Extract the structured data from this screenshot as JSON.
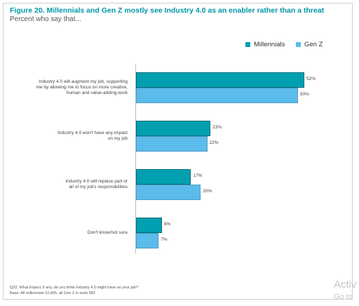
{
  "chart_data": {
    "type": "bar",
    "orientation": "horizontal",
    "title": "Figure 20. Millennials and Gen Z mostly see Industry 4.0 as an enabler rather than a threat",
    "subtitle": "Percent who say that...",
    "categories": [
      "Industry 4.0 will augment my job, supporting me by allowing me to focus on more creative, human and value-adding work",
      "Industry 4.0 won't have any impact on my job",
      "Industry 4.0 will replace part or all of my job's responsibilities",
      "Don't know/not sure"
    ],
    "category_lines": [
      [
        "Industry 4.0 will augment my job, supporting",
        "me by allowing me to focus on more creative,",
        "human and value-adding work"
      ],
      [
        "Industry 4.0 won't have any impact",
        "on my job"
      ],
      [
        "Industry 4.0 will replace part or",
        "all of my job's responsibilities"
      ],
      [
        "Don't know/not sure"
      ]
    ],
    "series": [
      {
        "name": "Millennials",
        "values": [
          52,
          23,
          17,
          8
        ],
        "labels": [
          "52%",
          "23%",
          "17%",
          "8%"
        ],
        "color": "#00a0b0"
      },
      {
        "name": "Gen Z",
        "values": [
          50,
          22,
          20,
          7
        ],
        "labels": [
          "50%",
          "22%",
          "20%",
          "7%"
        ],
        "color": "#5bbceb"
      }
    ],
    "xlim": [
      0,
      54
    ],
    "legend": "top-right",
    "grid": false
  },
  "footnote": {
    "question": "Q32. What impact, if any, do you think Industry 4.0 might have on your job?",
    "base": "Base: All millennials 10,455, all Gen Z in work 682"
  },
  "watermark": {
    "line1": "Activ",
    "line2": "Go to"
  }
}
